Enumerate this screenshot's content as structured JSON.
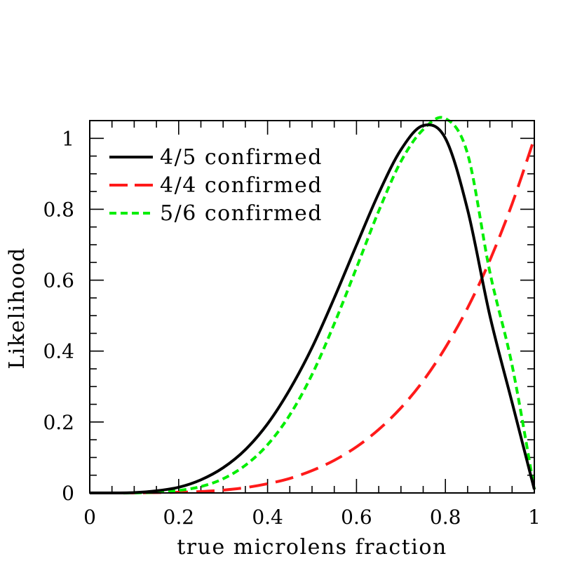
{
  "chart_data": {
    "type": "line",
    "title": "",
    "xlabel": "true microlens fraction",
    "ylabel": "Likelihood",
    "xlim": [
      0,
      1
    ],
    "ylim": [
      0,
      1.05
    ],
    "x_ticks": [
      0,
      0.2,
      0.4,
      0.6,
      0.8,
      1
    ],
    "x_tick_labels": [
      "0",
      "0.2",
      "0.4",
      "0.6",
      "0.8",
      "1"
    ],
    "y_ticks": [
      0,
      0.2,
      0.4,
      0.6,
      0.8,
      1
    ],
    "y_tick_labels": [
      "0",
      "0.2",
      "0.4",
      "0.6",
      "0.8",
      "1"
    ],
    "grid": false,
    "legend_position": "top-left",
    "x": [
      0,
      0.05,
      0.1,
      0.15,
      0.2,
      0.25,
      0.3,
      0.35,
      0.4,
      0.45,
      0.5,
      0.55,
      0.6,
      0.65,
      0.7,
      0.75,
      0.8,
      0.85,
      0.9,
      0.95,
      1
    ],
    "series": [
      {
        "name": "4/5 confirmed",
        "color": "#000000",
        "dash": "solid",
        "values": [
          0,
          0,
          0.001,
          0.006,
          0.016,
          0.037,
          0.071,
          0.122,
          0.195,
          0.292,
          0.41,
          0.55,
          0.699,
          0.845,
          0.968,
          1.036,
          1,
          0.798,
          0.5,
          0.255,
          0.01
        ]
      },
      {
        "name": "4/4 confirmed",
        "color": "#ff1a1a",
        "dash": "long",
        "values": [
          0,
          0,
          0,
          0.001,
          0.002,
          0.004,
          0.008,
          0.015,
          0.026,
          0.041,
          0.063,
          0.092,
          0.13,
          0.179,
          0.24,
          0.316,
          0.41,
          0.522,
          0.656,
          0.815,
          1
        ]
      },
      {
        "name": "5/6 confirmed",
        "color": "#00ee00",
        "dash": "short",
        "values": [
          0,
          0,
          0,
          0.002,
          0.007,
          0.018,
          0.04,
          0.078,
          0.136,
          0.22,
          0.334,
          0.477,
          0.635,
          0.795,
          0.935,
          1.025,
          1.056,
          0.956,
          0.623,
          0.36,
          0.01
        ]
      }
    ]
  }
}
